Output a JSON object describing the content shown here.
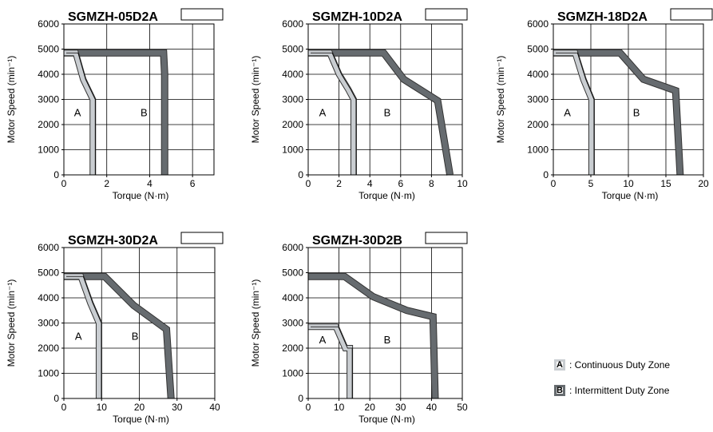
{
  "colors": {
    "zoneA": "#c9cdd1",
    "zoneB": "#666b6f",
    "grid": "#000000"
  },
  "legend": {
    "a": {
      "letter": "A",
      "text": ": Continuous Duty Zone"
    },
    "b": {
      "letter": "B",
      "text": ": Intermittent Duty Zone"
    }
  },
  "chart_data": [
    {
      "type": "line",
      "title": "SGMZH-05D2A",
      "xlabel": "Torque (N·m)",
      "ylabel": "Motor Speed (min⁻¹)",
      "xlim": [
        0,
        7
      ],
      "ylim": [
        0,
        6000
      ],
      "xticks": [
        0,
        2,
        4,
        6
      ],
      "yticks": [
        0,
        1000,
        2000,
        3000,
        4000,
        5000,
        6000
      ],
      "zone_labels": [
        {
          "text": "A",
          "x": 0.4,
          "y": 2500
        },
        {
          "text": "B",
          "x": 3.5,
          "y": 2500
        }
      ],
      "series": [
        {
          "name": "A",
          "x": [
            0,
            0.55,
            0.9,
            1.35,
            1.35
          ],
          "y": [
            4850,
            4850,
            3800,
            3000,
            0
          ]
        },
        {
          "name": "B",
          "x": [
            0,
            4.65,
            4.7,
            4.7
          ],
          "y": [
            4850,
            4850,
            4000,
            0
          ]
        }
      ]
    },
    {
      "type": "line",
      "title": "SGMZH-10D2A",
      "xlabel": "Torque (N·m)",
      "ylabel": "Motor Speed (min⁻¹)",
      "xlim": [
        0,
        10
      ],
      "ylim": [
        0,
        6000
      ],
      "xticks": [
        0,
        2,
        4,
        6,
        8,
        10
      ],
      "yticks": [
        0,
        1000,
        2000,
        3000,
        4000,
        5000,
        6000
      ],
      "zone_labels": [
        {
          "text": "A",
          "x": 0.6,
          "y": 2500
        },
        {
          "text": "B",
          "x": 4.8,
          "y": 2500
        }
      ],
      "series": [
        {
          "name": "A",
          "x": [
            0,
            1.4,
            2.0,
            2.6,
            2.95,
            2.95
          ],
          "y": [
            4850,
            4850,
            4000,
            3400,
            3000,
            0
          ]
        },
        {
          "name": "B",
          "x": [
            0,
            4.9,
            6.2,
            8.4,
            9.2
          ],
          "y": [
            4850,
            4850,
            3800,
            2950,
            0
          ]
        }
      ]
    },
    {
      "type": "line",
      "title": "SGMZH-18D2A",
      "xlabel": "Torque (N·m)",
      "ylabel": "Motor Speed (min⁻¹)",
      "xlim": [
        0,
        20
      ],
      "ylim": [
        0,
        6000
      ],
      "xticks": [
        0,
        5,
        10,
        15,
        20
      ],
      "yticks": [
        0,
        1000,
        2000,
        3000,
        4000,
        5000,
        6000
      ],
      "zone_labels": [
        {
          "text": "A",
          "x": 1.2,
          "y": 2500
        },
        {
          "text": "B",
          "x": 10.4,
          "y": 2500
        }
      ],
      "series": [
        {
          "name": "A",
          "x": [
            0,
            2.9,
            4.0,
            5.1,
            5.1
          ],
          "y": [
            4850,
            4850,
            3800,
            3000,
            0
          ]
        },
        {
          "name": "B",
          "x": [
            0,
            8.9,
            12.0,
            16.3,
            16.9
          ],
          "y": [
            4850,
            4850,
            3800,
            3350,
            0
          ]
        }
      ]
    },
    {
      "type": "line",
      "title": "SGMZH-30D2A",
      "xlabel": "Torque (N·m)",
      "ylabel": "Motor Speed (min⁻¹)",
      "xlim": [
        0,
        40
      ],
      "ylim": [
        0,
        6000
      ],
      "xticks": [
        0,
        10,
        20,
        30,
        40
      ],
      "yticks": [
        0,
        1000,
        2000,
        3000,
        4000,
        5000,
        6000
      ],
      "zone_labels": [
        {
          "text": "A",
          "x": 2.5,
          "y": 2500
        },
        {
          "text": "B",
          "x": 17.5,
          "y": 2500
        }
      ],
      "series": [
        {
          "name": "A",
          "x": [
            0,
            4.5,
            7.0,
            9.3,
            9.3
          ],
          "y": [
            4850,
            4850,
            3800,
            3000,
            0
          ]
        },
        {
          "name": "B",
          "x": [
            0,
            10.8,
            18.5,
            27.2,
            28.4
          ],
          "y": [
            4850,
            4850,
            3700,
            2750,
            0
          ]
        }
      ]
    },
    {
      "type": "line",
      "title": "SGMZH-30D2B",
      "xlabel": "Torque (N·m)",
      "ylabel": "Motor Speed (min⁻¹)",
      "xlim": [
        0,
        50
      ],
      "ylim": [
        0,
        6000
      ],
      "xticks": [
        0,
        10,
        20,
        30,
        40,
        50
      ],
      "yticks": [
        0,
        1000,
        2000,
        3000,
        4000,
        5000,
        6000
      ],
      "zone_labels": [
        {
          "text": "A",
          "x": 3.0,
          "y": 2350
        },
        {
          "text": "B",
          "x": 24.0,
          "y": 2350
        }
      ],
      "series": [
        {
          "name": "A",
          "x": [
            0,
            9.0,
            12.0,
            13.5,
            13.5
          ],
          "y": [
            2850,
            2850,
            2000,
            2000,
            0
          ]
        },
        {
          "name": "B",
          "x": [
            0,
            11.8,
            21.0,
            32.0,
            40.5,
            41.2
          ],
          "y": [
            4850,
            4850,
            4050,
            3500,
            3250,
            0
          ]
        }
      ]
    }
  ]
}
